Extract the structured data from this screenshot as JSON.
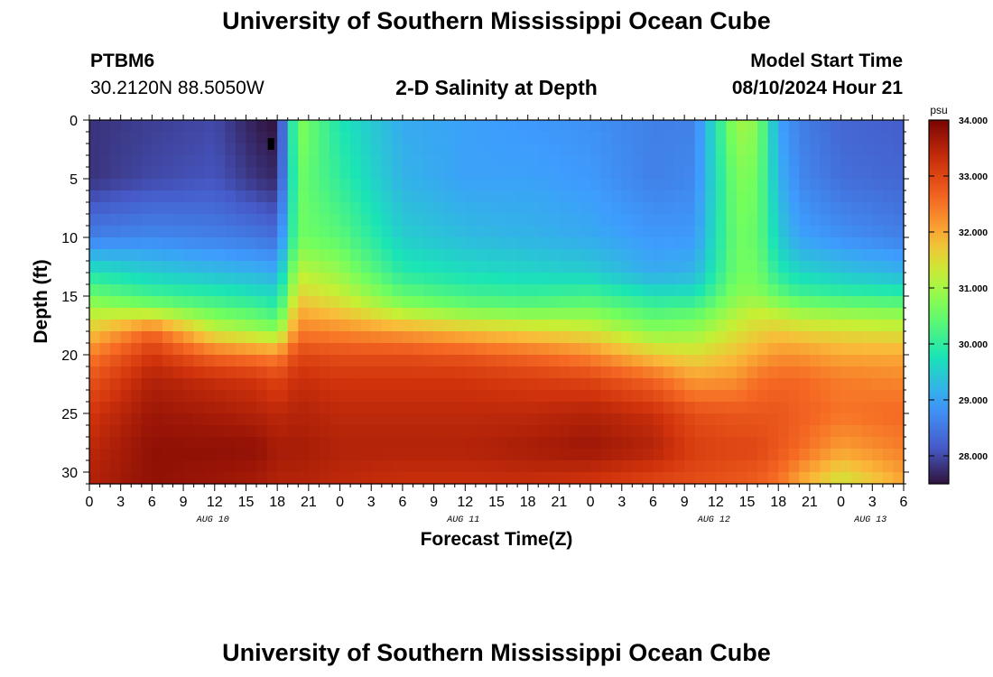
{
  "header": {
    "title": "University of Southern Mississippi Ocean Cube",
    "station_id": "PTBM6",
    "coordinates": "30.2120N  88.5050W",
    "subtitle": "2-D Salinity at Depth",
    "model_start_label": "Model Start Time",
    "model_start_value": "08/10/2024 Hour 21"
  },
  "footer": {
    "title": "University of Southern Mississippi Ocean Cube"
  },
  "chart_data": {
    "type": "heatmap",
    "title": "2-D Salinity at Depth",
    "xlabel": "Forecast Time(Z)",
    "ylabel": "Depth (ft)",
    "x_range_hours": [
      0,
      78
    ],
    "y_range_ft": [
      0,
      31
    ],
    "x_tick_labels": [
      "0",
      "3",
      "6",
      "9",
      "12",
      "15",
      "18",
      "21",
      "0",
      "3",
      "6",
      "9",
      "12",
      "15",
      "18",
      "21",
      "0",
      "3",
      "6",
      "9",
      "12",
      "15",
      "18",
      "21",
      "0",
      "3",
      "6"
    ],
    "date_labels": [
      {
        "label": "AUG 10",
        "at_hour": 12
      },
      {
        "label": "AUG 11",
        "at_hour": 36
      },
      {
        "label": "AUG 12",
        "at_hour": 60
      },
      {
        "label": "AUG 13",
        "at_hour": 75
      }
    ],
    "y_ticks": [
      0,
      5,
      10,
      15,
      20,
      25,
      30
    ],
    "colorbar": {
      "unit": "psu",
      "min": 27.5,
      "max": 34.0,
      "ticks": [
        "34.000",
        "33.000",
        "32.000",
        "31.000",
        "30.000",
        "29.000",
        "28.000"
      ],
      "tick_values": [
        34,
        33,
        32,
        31,
        30,
        29,
        28
      ]
    },
    "grid": {
      "times_hours": [
        0,
        6,
        12,
        16,
        18,
        20,
        24,
        30,
        36,
        42,
        48,
        54,
        58,
        62,
        64,
        66,
        68,
        72,
        78
      ],
      "depths_ft": [
        0,
        5,
        10,
        13,
        15,
        16,
        18,
        20,
        22,
        25,
        28,
        31
      ],
      "salinity_psu": [
        [
          27.8,
          27.8,
          28.6,
          29.8,
          30.6,
          31.0,
          31.7,
          32.4,
          32.8,
          33.2,
          33.4,
          33.5
        ],
        [
          27.9,
          28.0,
          28.7,
          29.5,
          30.2,
          30.8,
          32.6,
          33.2,
          33.5,
          33.7,
          33.8,
          33.8
        ],
        [
          28.0,
          28.1,
          28.6,
          29.3,
          30.0,
          30.4,
          31.3,
          32.6,
          33.3,
          33.6,
          33.8,
          33.7
        ],
        [
          27.6,
          27.8,
          28.5,
          29.2,
          29.8,
          30.2,
          31.0,
          32.4,
          33.2,
          33.5,
          33.8,
          33.6
        ],
        [
          27.5,
          27.7,
          28.4,
          29.1,
          29.7,
          30.0,
          30.8,
          32.3,
          33.0,
          33.4,
          33.6,
          33.5
        ],
        [
          30.8,
          30.6,
          30.6,
          31.2,
          31.6,
          31.9,
          32.4,
          33.0,
          33.3,
          33.5,
          33.6,
          33.5
        ],
        [
          29.8,
          30.0,
          30.4,
          30.9,
          31.3,
          31.6,
          32.3,
          32.9,
          33.2,
          33.4,
          33.5,
          33.4
        ],
        [
          29.1,
          29.2,
          29.5,
          29.9,
          30.5,
          30.9,
          32.1,
          32.9,
          33.2,
          33.4,
          33.5,
          33.3
        ],
        [
          29.0,
          29.0,
          29.3,
          29.7,
          30.2,
          30.6,
          31.8,
          32.8,
          33.2,
          33.4,
          33.5,
          33.3
        ],
        [
          28.9,
          29.0,
          29.2,
          29.6,
          30.1,
          30.5,
          31.6,
          32.6,
          33.1,
          33.4,
          33.6,
          33.3
        ],
        [
          28.8,
          28.9,
          29.1,
          29.5,
          30.2,
          30.6,
          31.4,
          32.3,
          33.0,
          33.5,
          33.7,
          33.2
        ],
        [
          28.6,
          28.6,
          28.9,
          29.1,
          29.8,
          30.2,
          30.8,
          31.7,
          32.6,
          33.3,
          33.5,
          33.0
        ],
        [
          28.6,
          28.7,
          28.9,
          29.2,
          29.8,
          30.3,
          30.9,
          31.5,
          32.1,
          32.9,
          33.1,
          32.9
        ],
        [
          31.0,
          30.7,
          30.6,
          30.6,
          30.8,
          31.0,
          31.4,
          31.8,
          32.2,
          32.8,
          33.0,
          32.8
        ],
        [
          30.8,
          30.6,
          30.5,
          30.6,
          30.8,
          31.2,
          31.6,
          32.0,
          32.5,
          32.8,
          33.0,
          32.7
        ],
        [
          29.0,
          29.2,
          29.5,
          29.9,
          30.5,
          31.0,
          31.7,
          32.2,
          32.6,
          32.8,
          32.8,
          32.5
        ],
        [
          28.6,
          28.7,
          29.0,
          29.6,
          30.2,
          30.8,
          31.6,
          32.2,
          32.6,
          32.7,
          32.6,
          32.0
        ],
        [
          28.3,
          28.4,
          28.8,
          29.4,
          30.1,
          30.7,
          31.5,
          32.0,
          32.4,
          32.5,
          32.1,
          31.3
        ],
        [
          28.2,
          28.3,
          28.6,
          29.2,
          30.0,
          30.6,
          31.4,
          32.0,
          32.3,
          32.6,
          32.4,
          32.0
        ]
      ],
      "marker": {
        "hour": 17.4,
        "depth_ft": 2.0
      }
    }
  }
}
